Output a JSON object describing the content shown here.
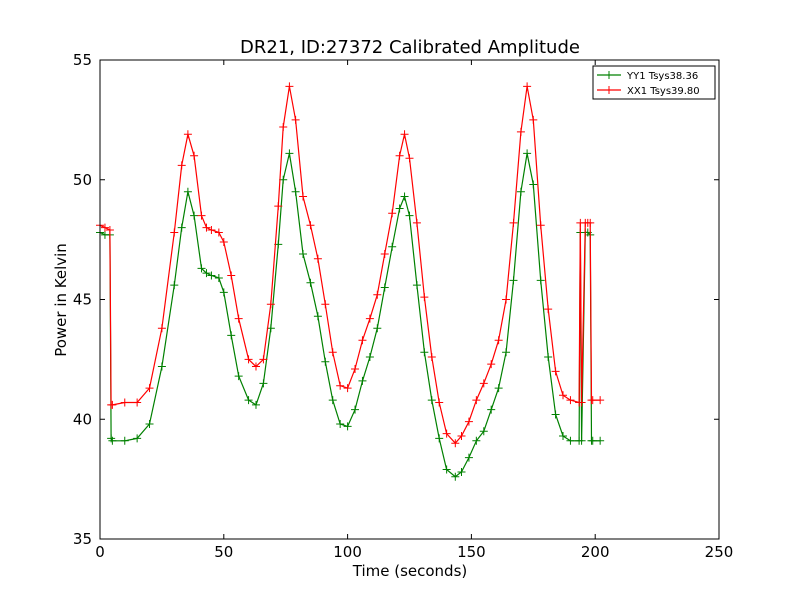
{
  "chart_data": {
    "type": "line",
    "title": "DR21, ID:27372 Calibrated Amplitude",
    "xlabel": "Time (seconds)",
    "ylabel": "Power in Kelvin",
    "xlim": [
      0,
      250
    ],
    "ylim": [
      35,
      55
    ],
    "xticks": [
      "0",
      "50",
      "100",
      "150",
      "200",
      "250"
    ],
    "yticks": [
      "35",
      "40",
      "45",
      "50",
      "55"
    ],
    "grid": false,
    "legend_position": "top-right",
    "marker": "plus",
    "series": [
      {
        "name": "YY1 Tsys38.36",
        "color": "#008000",
        "x": [
          0,
          2,
          4,
          4.5,
          5,
          10,
          15,
          20,
          25,
          30,
          33,
          35.5,
          38,
          41,
          43,
          45,
          48,
          50,
          53,
          56,
          60,
          63,
          66,
          69,
          72,
          74,
          76.5,
          79,
          82,
          85,
          88,
          91,
          94,
          97,
          100,
          103,
          106,
          109,
          112,
          115,
          118,
          121,
          123,
          125,
          128,
          131,
          134,
          137,
          140,
          143.5,
          146,
          149,
          152,
          155,
          158,
          161,
          164,
          167,
          170,
          172.5,
          175,
          178,
          181,
          184,
          187,
          190,
          193.5,
          194,
          194.5,
          196,
          197,
          198,
          198.5,
          199,
          202
        ],
        "y": [
          47.8,
          47.7,
          47.7,
          39.2,
          39.1,
          39.1,
          39.2,
          39.8,
          42.2,
          45.6,
          48.0,
          49.5,
          48.5,
          46.3,
          46.1,
          46.0,
          45.9,
          45.3,
          43.5,
          41.8,
          40.8,
          40.6,
          41.5,
          43.8,
          47.3,
          50.0,
          51.1,
          49.5,
          46.9,
          45.7,
          44.3,
          42.4,
          40.8,
          39.8,
          39.7,
          40.4,
          41.6,
          42.6,
          43.8,
          45.5,
          47.2,
          48.8,
          49.3,
          48.5,
          45.6,
          42.8,
          40.8,
          39.2,
          37.9,
          37.6,
          37.8,
          38.4,
          39.1,
          39.5,
          40.4,
          41.3,
          42.8,
          45.8,
          49.5,
          51.1,
          49.8,
          45.8,
          42.6,
          40.2,
          39.3,
          39.1,
          39.1,
          47.8,
          39.1,
          47.8,
          47.8,
          47.7,
          39.1,
          39.1,
          39.1
        ]
      },
      {
        "name": "XX1 Tsys39.80",
        "color": "#ff0000",
        "x": [
          0,
          2,
          4,
          4.5,
          5,
          10,
          15,
          20,
          25,
          30,
          33,
          35.5,
          38,
          41,
          43,
          45,
          48,
          50,
          53,
          56,
          60,
          63,
          66,
          69,
          72,
          74,
          76.5,
          79,
          82,
          85,
          88,
          91,
          94,
          97,
          100,
          103,
          106,
          109,
          112,
          115,
          118,
          121,
          123,
          125,
          128,
          131,
          134,
          137,
          140,
          143.5,
          146,
          149,
          152,
          155,
          158,
          161,
          164,
          167,
          170,
          172.5,
          175,
          178,
          181,
          184,
          187,
          190,
          193.5,
          194,
          194.5,
          196,
          197,
          198,
          198.5,
          199,
          202
        ],
        "y": [
          48.1,
          48.0,
          47.9,
          40.6,
          40.6,
          40.7,
          40.7,
          41.3,
          43.8,
          47.8,
          50.6,
          51.9,
          51.0,
          48.5,
          48.0,
          47.9,
          47.8,
          47.4,
          46.0,
          44.2,
          42.5,
          42.2,
          42.5,
          44.8,
          48.9,
          52.2,
          53.9,
          52.5,
          49.3,
          48.1,
          46.7,
          44.8,
          42.8,
          41.4,
          41.3,
          42.1,
          43.3,
          44.2,
          45.2,
          46.9,
          48.6,
          51.0,
          51.9,
          50.9,
          48.2,
          45.1,
          42.6,
          40.7,
          39.4,
          39.0,
          39.3,
          39.9,
          40.8,
          41.5,
          42.3,
          43.3,
          45.0,
          48.2,
          52.0,
          53.9,
          52.5,
          48.1,
          44.6,
          42.0,
          41.0,
          40.8,
          40.7,
          48.2,
          40.7,
          48.2,
          48.2,
          48.2,
          40.8,
          40.8,
          40.8
        ]
      }
    ]
  }
}
